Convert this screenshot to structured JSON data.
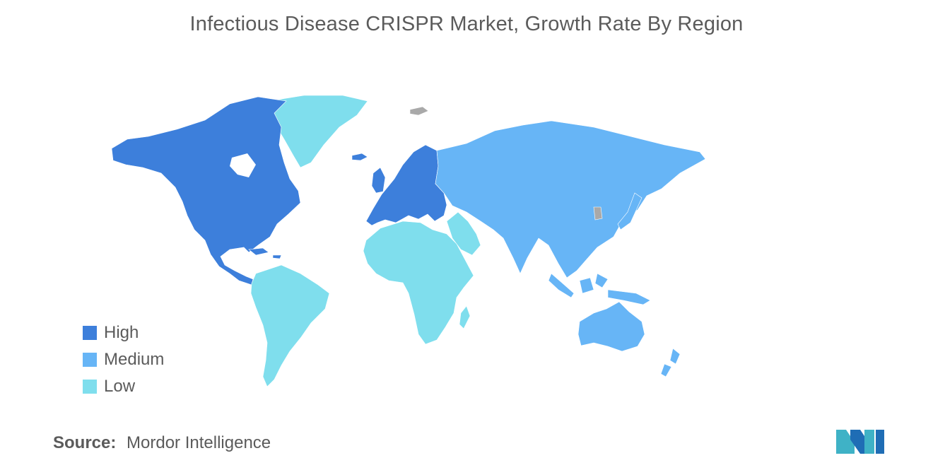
{
  "title": "Infectious Disease CRISPR Market, Growth Rate By Region",
  "colors": {
    "high": "#3d7fdb",
    "medium": "#67b5f6",
    "low": "#7fdeed",
    "no_data": "#a9a9a9"
  },
  "regions": [
    {
      "name": "North America",
      "level": "high"
    },
    {
      "name": "Europe",
      "level": "high"
    },
    {
      "name": "Asia-Pacific",
      "level": "medium"
    },
    {
      "name": "South America",
      "level": "low"
    },
    {
      "name": "Middle East and Africa",
      "level": "low"
    }
  ],
  "legend": {
    "items": [
      {
        "label": "High",
        "level": "high"
      },
      {
        "label": "Medium",
        "level": "medium"
      },
      {
        "label": "Low",
        "level": "low"
      }
    ]
  },
  "source": {
    "label": "Source:",
    "text": "Mordor Intelligence"
  },
  "logo_icon": "mordor-intelligence-logo-icon"
}
